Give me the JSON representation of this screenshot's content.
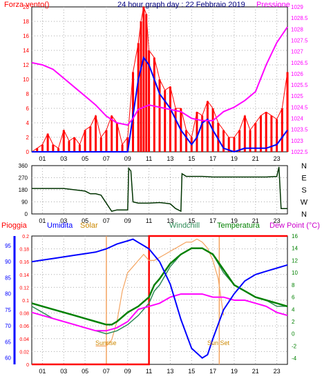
{
  "panel1": {
    "left_label": "Forza vento()",
    "title": "24 hour graph day : 22 Febbraio 2019",
    "right_label": "Pressione",
    "left_ticks": [
      "0",
      "2",
      "4",
      "6",
      "8",
      "10",
      "12",
      "14",
      "16",
      "18",
      "20"
    ],
    "right_ticks": [
      "1022.5",
      "1023",
      "1023.5",
      "1024",
      "1024.5",
      "1025",
      "1025.5",
      "1026",
      "1026.5",
      "1027",
      "1027.5",
      "1028",
      "1028.5",
      "1029"
    ],
    "x_ticks": [
      "01",
      "03",
      "05",
      "07",
      "09",
      "11",
      "13",
      "15",
      "17",
      "19",
      "21",
      "23"
    ]
  },
  "panel2": {
    "left_ticks": [
      "0",
      "90",
      "180",
      "270",
      "360"
    ],
    "right_labels": [
      "N",
      "W",
      "S",
      "E",
      "N"
    ],
    "x_ticks": [
      "01",
      "03",
      "05",
      "07",
      "09",
      "11",
      "13",
      "15",
      "17",
      "19",
      "21",
      "23"
    ]
  },
  "panel3": {
    "labels": {
      "pioggia": "Pioggia",
      "umidita": "Umidita",
      "solar": "Solar",
      "windchill": "Windchill",
      "temperatura": "Temperatura",
      "dewpoint": "Dew Point (°C)"
    },
    "rain_ticks": [
      "0",
      "0.02",
      "0.04",
      "0.06",
      "0.08",
      "0.1",
      "0.12",
      "0.14",
      "0.16",
      "0.18",
      "0.2"
    ],
    "hum_ticks": [
      "60",
      "65",
      "70",
      "75",
      "80",
      "85",
      "90",
      "95"
    ],
    "temp_ticks": [
      "-4",
      "-2",
      "0",
      "2",
      "4",
      "6",
      "8",
      "10",
      "12",
      "14",
      "16"
    ],
    "x_ticks": [
      "01",
      "03",
      "05",
      "07",
      "09",
      "11",
      "13",
      "15",
      "17",
      "19",
      "21",
      "23"
    ],
    "sunrise": "Sunrise",
    "sunset": "Sun Set"
  },
  "colors": {
    "wind_gust": "#ff0000",
    "wind_avg": "#0000ff",
    "pressure": "#ff00ff",
    "direction": "#003300",
    "rain": "#ff0000",
    "humidity": "#0000ff",
    "solar": "#f4a460",
    "windchill": "#2e8b57",
    "temperature": "#008000",
    "dewpoint": "#ff00ff",
    "title": "#000080"
  },
  "chart_data": [
    {
      "type": "line",
      "title": "24 hour graph day : 22 Febbraio 2019",
      "xlabel": "",
      "ylabel": "Forza vento()",
      "y2label": "Pressione",
      "xlim": [
        0,
        24
      ],
      "ylim": [
        0,
        20
      ],
      "y2lim": [
        1022.5,
        1029
      ],
      "series": [
        {
          "name": "Forza vento()",
          "axis": "left",
          "x": [
            0,
            0.5,
            1,
            1.5,
            2,
            2.5,
            3,
            3.5,
            4,
            4.5,
            5,
            5.5,
            6,
            6.5,
            7,
            7.5,
            8,
            8.5,
            9,
            9.5,
            10,
            10.25,
            10.5,
            10.75,
            11,
            11.5,
            12,
            12.5,
            13,
            13.5,
            14,
            14.5,
            15,
            15.5,
            16,
            16.5,
            17,
            17.5,
            18,
            18.5,
            19,
            19.5,
            20,
            20.5,
            21,
            21.5,
            22,
            22.5,
            23,
            23.5,
            24
          ],
          "y": [
            0,
            0.5,
            1,
            2.5,
            1,
            0.5,
            3,
            1.5,
            2,
            1,
            3,
            3.5,
            5,
            2,
            3,
            5,
            4,
            1,
            2,
            11,
            15,
            18,
            20,
            19,
            14,
            13,
            10,
            8.5,
            9,
            6,
            6,
            3,
            2,
            5.5,
            5,
            7,
            6,
            4,
            3,
            2,
            2,
            3,
            5,
            3,
            4,
            5,
            5.5,
            5,
            4.5,
            6,
            11
          ]
        },
        {
          "name": "Pressione",
          "axis": "right",
          "x": [
            0,
            1,
            2,
            3,
            4,
            5,
            6,
            7,
            8,
            9,
            9.5,
            10,
            11,
            12,
            13,
            14,
            15,
            16,
            17,
            18,
            19,
            20,
            21,
            22,
            23,
            24
          ],
          "y": [
            1026.5,
            1026.4,
            1026.2,
            1025.8,
            1025.4,
            1025.0,
            1024.6,
            1024.1,
            1023.8,
            1023.7,
            1024.0,
            1024.4,
            1024.6,
            1024.5,
            1024.4,
            1024.3,
            1024.0,
            1023.9,
            1023.9,
            1024.3,
            1024.5,
            1024.8,
            1025.2,
            1026.4,
            1027.4,
            1028.1
          ]
        },
        {
          "name": "avg",
          "axis": "left",
          "x": [
            0,
            1,
            2,
            3,
            4,
            5,
            6,
            7,
            8,
            9,
            9.5,
            10,
            10.5,
            11,
            11.5,
            12,
            13,
            14,
            15,
            15.5,
            16,
            16.5,
            17,
            18,
            19,
            20,
            21,
            22,
            23,
            24
          ],
          "y": [
            0,
            0,
            0,
            0,
            0,
            0,
            0,
            0,
            0,
            0,
            5,
            10,
            13,
            12,
            10,
            8,
            6,
            3,
            1,
            2,
            4,
            4.5,
            3,
            0.5,
            0,
            0.5,
            0.5,
            0.5,
            1,
            3
          ]
        }
      ]
    },
    {
      "type": "line",
      "title": "",
      "xlabel": "",
      "ylabel": "",
      "xlim": [
        0,
        24
      ],
      "ylim": [
        0,
        360
      ],
      "series": [
        {
          "name": "direction",
          "x": [
            0,
            1,
            2,
            3,
            4,
            5,
            5.5,
            6,
            6.5,
            7,
            7.5,
            8,
            8.5,
            9,
            9.1,
            9.3,
            9.5,
            10,
            11,
            12,
            12.5,
            13,
            13.5,
            14,
            14.1,
            14.3,
            14.5,
            15,
            16,
            17,
            18,
            19,
            20,
            21,
            22,
            23,
            23.2,
            23.4,
            24
          ],
          "y": [
            190,
            190,
            190,
            190,
            180,
            170,
            150,
            150,
            140,
            80,
            20,
            30,
            30,
            30,
            340,
            320,
            90,
            80,
            80,
            85,
            80,
            75,
            40,
            20,
            300,
            290,
            280,
            280,
            280,
            275,
            275,
            275,
            275,
            275,
            275,
            280,
            350,
            40,
            40
          ]
        }
      ]
    },
    {
      "type": "line",
      "title": "",
      "xlabel": "",
      "ylabel": "",
      "xlim": [
        0,
        24
      ],
      "series": [
        {
          "name": "Umidita",
          "axis": "hum",
          "ylim": [
            58,
            98
          ],
          "x": [
            0,
            1,
            2,
            3,
            4,
            5,
            6,
            6.5,
            7,
            8,
            9,
            9.5,
            10,
            10.5,
            11,
            12,
            13,
            14,
            15,
            16,
            16.5,
            17,
            18,
            19,
            20,
            21,
            22,
            23,
            24
          ],
          "y": [
            90,
            90.5,
            91,
            91.5,
            92,
            92.5,
            93,
            93.5,
            94,
            95.5,
            96.5,
            97,
            96,
            95,
            94,
            90,
            83,
            72,
            63,
            60,
            61,
            66,
            75,
            80,
            84,
            86,
            87,
            88,
            89
          ]
        },
        {
          "name": "Solar",
          "axis": "temp",
          "ylim": [
            -5,
            16
          ],
          "x": [
            6,
            6.5,
            7,
            7.5,
            8,
            8.5,
            9,
            9.5,
            10,
            10.5,
            11,
            11.5,
            12,
            12.5,
            13,
            13.5,
            14,
            14.5,
            15,
            15.5,
            16,
            16.5,
            17,
            17.5,
            18
          ],
          "y": [
            -2,
            -2,
            -2,
            -1,
            2,
            7,
            10,
            11,
            12,
            13,
            12,
            12,
            12.5,
            13,
            13.5,
            14,
            14.5,
            15,
            15,
            15.5,
            15,
            14,
            12,
            9,
            3
          ]
        },
        {
          "name": "Windchill",
          "axis": "temp",
          "ylim": [
            -5,
            16
          ],
          "x": [
            0,
            1,
            2,
            3,
            4,
            5,
            6,
            7,
            8,
            9,
            10,
            10.5,
            11,
            11.5,
            12,
            13,
            14,
            15,
            16,
            17,
            18,
            19,
            20,
            21,
            22,
            23,
            24
          ],
          "y": [
            4.5,
            3.5,
            2.5,
            2,
            1.5,
            1,
            0.5,
            0,
            0.5,
            1.5,
            3,
            4,
            5,
            7,
            8,
            11,
            13,
            14,
            14,
            13,
            10,
            8,
            7,
            6,
            5.5,
            4.5,
            4.5
          ]
        },
        {
          "name": "Temperatura",
          "axis": "temp",
          "ylim": [
            -5,
            16
          ],
          "x": [
            0,
            1,
            2,
            3,
            4,
            5,
            6,
            7,
            7.5,
            8,
            9,
            10,
            11,
            11.5,
            12,
            13,
            14,
            15,
            16,
            17,
            18,
            19,
            20,
            21,
            22,
            23,
            24
          ],
          "y": [
            5,
            4.5,
            4,
            3.5,
            3,
            2.5,
            2,
            1.5,
            1.5,
            2,
            3.5,
            4.5,
            6,
            8,
            9,
            11.5,
            13,
            14,
            14,
            13,
            10.5,
            8,
            7,
            6,
            5.5,
            5,
            4.5
          ]
        },
        {
          "name": "Dew Point (°C)",
          "axis": "temp",
          "ylim": [
            -5,
            16
          ],
          "x": [
            0,
            1,
            2,
            3,
            4,
            5,
            6,
            7,
            8,
            9,
            10,
            11,
            12,
            13,
            14,
            15,
            16,
            17,
            18,
            19,
            20,
            21,
            22,
            23,
            24
          ],
          "y": [
            3.5,
            3,
            2.5,
            2,
            1.5,
            1,
            0.5,
            0.5,
            1,
            2,
            4,
            4.5,
            5,
            6,
            6.5,
            6.5,
            6.5,
            6,
            6,
            5.5,
            5.5,
            5,
            4.5,
            3.5,
            3
          ]
        },
        {
          "name": "Pioggia",
          "axis": "rain",
          "ylim": [
            0,
            0.2
          ],
          "x": [
            0,
            11,
            11.01,
            24
          ],
          "y": [
            0,
            0,
            0.2,
            0.2
          ]
        }
      ]
    }
  ]
}
